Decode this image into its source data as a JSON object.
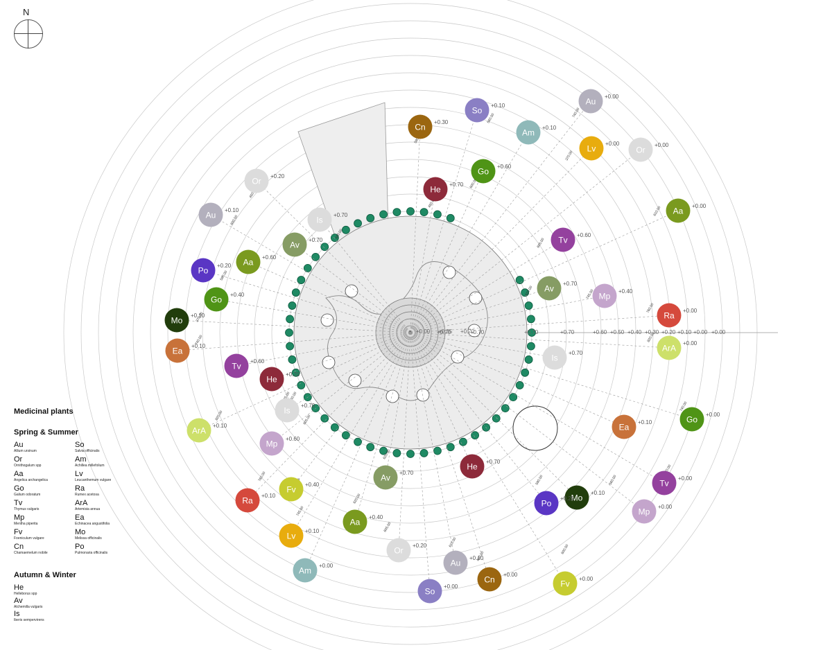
{
  "compass": {
    "north_label": "N"
  },
  "legend": {
    "title": "Medicinal plants",
    "spring_summer_label": "Spring & Summer",
    "spring_summer": [
      {
        "code": "Au",
        "name": "Allium ursinum"
      },
      {
        "code": "So",
        "name": "Salvia officinalis"
      },
      {
        "code": "Or",
        "name": "Ornithogalum spp"
      },
      {
        "code": "Am",
        "name": "Achillea millefolium"
      },
      {
        "code": "Aa",
        "name": "Angelica archangelica"
      },
      {
        "code": "Lv",
        "name": "Leucanthemum vulgare"
      },
      {
        "code": "Go",
        "name": "Galium odoratum"
      },
      {
        "code": "Ra",
        "name": "Rumex acetosa"
      },
      {
        "code": "Tv",
        "name": "Thymus vulgaris"
      },
      {
        "code": "ArA",
        "name": "Artemisia annua"
      },
      {
        "code": "Mp",
        "name": "Mentha piperita"
      },
      {
        "code": "Ea",
        "name": "Echinacea angustifolia"
      },
      {
        "code": "Fv",
        "name": "Foeniculum vulgare"
      },
      {
        "code": "Mo",
        "name": "Melissa officinalis"
      },
      {
        "code": "Cn",
        "name": "Chamaemelum nobile"
      },
      {
        "code": "Po",
        "name": "Pulmonaria officinalis"
      }
    ],
    "autumn_winter_label": "Autumn & Winter",
    "autumn_winter": [
      {
        "code": "He",
        "name": "Helleborus spp"
      },
      {
        "code": "Av",
        "name": "Alchemilla vulgaris"
      },
      {
        "code": "Is",
        "name": "Iberis sempervirens"
      }
    ]
  },
  "colors": {
    "Au": "#b3b0bd",
    "So": "#8a7fc4",
    "Or": "#dcdcdc",
    "Am": "#8fb9b9",
    "Aa": "#7a9a1f",
    "Lv": "#e8ac0e",
    "Go": "#4f9416",
    "Ra": "#d5493c",
    "Tv": "#94419e",
    "ArA": "#cde06a",
    "Mp": "#c4a5cc",
    "Ea": "#c8723a",
    "Fv": "#c6cc30",
    "Mo": "#213d0c",
    "Cn": "#9b6610",
    "Po": "#5a36c4",
    "He": "#8d2a3a",
    "Av": "#869c64",
    "Is": "#dcdcdc",
    "tree": "#1f8a64",
    "lines": "#bbbbbb",
    "ink": "#333333"
  },
  "bubbles": [
    {
      "code": "Cn",
      "elev": "+0.30"
    },
    {
      "code": "So",
      "elev": "+0.10"
    },
    {
      "code": "Au",
      "elev": "+0.00"
    },
    {
      "code": "Am",
      "elev": "+0.10"
    },
    {
      "code": "Lv",
      "elev": "+0.00"
    },
    {
      "code": "Or",
      "elev": "+0.00"
    },
    {
      "code": "Go",
      "elev": "+0.60"
    },
    {
      "code": "He",
      "elev": "+0.70"
    },
    {
      "code": "Aa",
      "elev": "+0.00"
    },
    {
      "code": "Tv",
      "elev": "+0.60"
    },
    {
      "code": "Av",
      "elev": "+0.70"
    },
    {
      "code": "Mp",
      "elev": "+0.40"
    },
    {
      "code": "Ra",
      "elev": "+0.00"
    },
    {
      "code": "ArA",
      "elev": "+0.00"
    },
    {
      "code": "Is",
      "elev": "+0.70"
    },
    {
      "code": "Go",
      "elev": "+0.00"
    },
    {
      "code": "Ea",
      "elev": "+0.10"
    },
    {
      "code": "Tv",
      "elev": "+0.00"
    },
    {
      "code": "Mo",
      "elev": "+0.10"
    },
    {
      "code": "Po",
      "elev": "+0.20"
    },
    {
      "code": "Mp",
      "elev": "+0.00"
    },
    {
      "code": "He",
      "elev": "+0.70"
    },
    {
      "code": "Av",
      "elev": "+0.70"
    },
    {
      "code": "Fv",
      "elev": "+0.00"
    },
    {
      "code": "Cn",
      "elev": "+0.00"
    },
    {
      "code": "Au",
      "elev": "+0.10"
    },
    {
      "code": "So",
      "elev": "+0.00"
    },
    {
      "code": "Or",
      "elev": "+0.20"
    },
    {
      "code": "Aa",
      "elev": "+0.40"
    },
    {
      "code": "Am",
      "elev": "+0.00"
    },
    {
      "code": "Lv",
      "elev": "+0.10"
    },
    {
      "code": "Fv",
      "elev": "+0.40"
    },
    {
      "code": "Ra",
      "elev": "+0.10"
    },
    {
      "code": "Mp",
      "elev": "+0.60"
    },
    {
      "code": "Is",
      "elev": "+0.70"
    },
    {
      "code": "ArA",
      "elev": "+0.10"
    },
    {
      "code": "He",
      "elev": "+0.70"
    },
    {
      "code": "Tv",
      "elev": "+0.60"
    },
    {
      "code": "Ea",
      "elev": "+0.10"
    },
    {
      "code": "Mo",
      "elev": "+0.10"
    },
    {
      "code": "Go",
      "elev": "+0.40"
    },
    {
      "code": "Aa",
      "elev": "+0.60"
    },
    {
      "code": "Po",
      "elev": "+0.20"
    },
    {
      "code": "Av",
      "elev": "+0.70"
    },
    {
      "code": "Is",
      "elev": "+0.70"
    },
    {
      "code": "Au",
      "elev": "+0.10"
    },
    {
      "code": "Or",
      "elev": "+0.20"
    }
  ],
  "ring_elevations": [
    "+0.70",
    "+0.70",
    "+0.70",
    "+0.70",
    "+0.60",
    "+0.50",
    "+0.40",
    "+0.30",
    "+0.20",
    "+0.10",
    "+0.00",
    "+0.00"
  ],
  "center_elevations": [
    "+0.00",
    "+0.35",
    "+0.70"
  ],
  "distances": [
    "740.00",
    "370.00",
    "560.00",
    "590.00",
    "600.00",
    "450.00",
    "610.00",
    "605.00",
    "620.00",
    "745.00",
    "760.00",
    "820.00"
  ]
}
